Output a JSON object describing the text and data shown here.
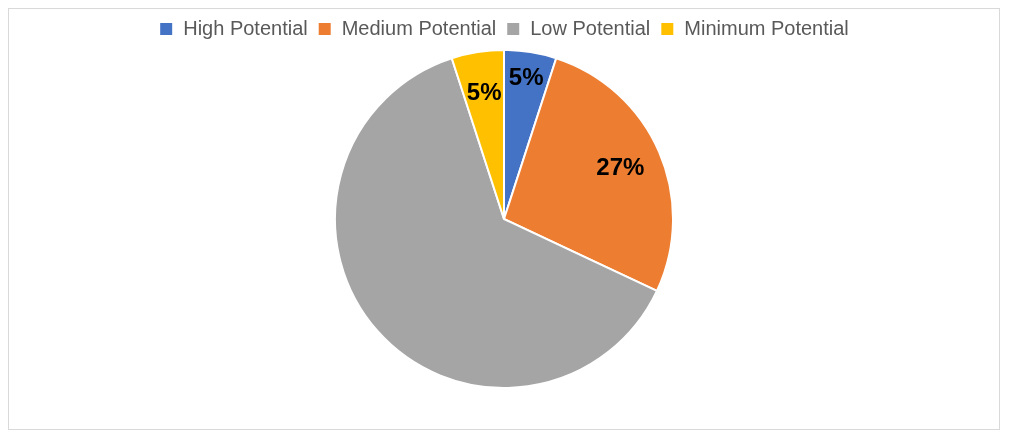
{
  "chart_data": {
    "type": "pie",
    "categories": [
      "High Potential",
      "Medium Potential",
      "Low Potential",
      "Minimum Potential"
    ],
    "values": [
      5,
      27,
      63,
      5
    ],
    "colors": [
      "#4472c4",
      "#ed7d31",
      "#a5a5a5",
      "#ffc000"
    ],
    "value_labels": [
      "5%",
      "27%",
      null,
      "5%"
    ],
    "legend": "top"
  }
}
